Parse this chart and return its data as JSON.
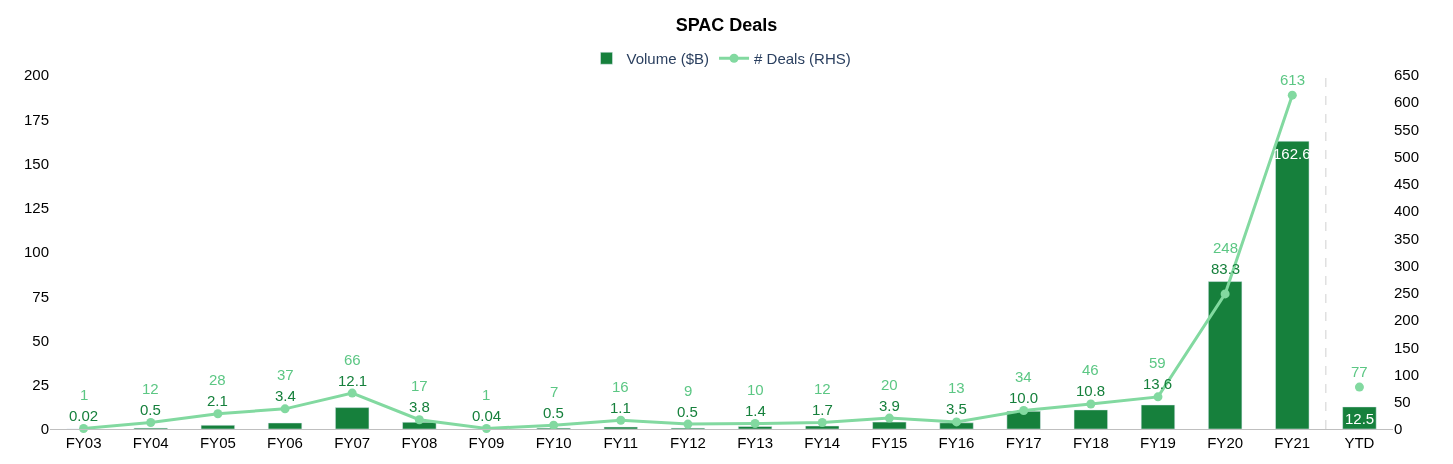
{
  "chart_data": {
    "type": "bar",
    "title": "SPAC Deals",
    "categories": [
      "FY03",
      "FY04",
      "FY05",
      "FY06",
      "FY07",
      "FY08",
      "FY09",
      "FY10",
      "FY11",
      "FY12",
      "FY13",
      "FY14",
      "FY15",
      "FY16",
      "FY17",
      "FY18",
      "FY19",
      "FY20",
      "FY21",
      "YTD"
    ],
    "series": [
      {
        "name": "Volume ($B)",
        "color": "#16803c",
        "values": [
          0.02,
          0.5,
          2.1,
          3.4,
          12.1,
          3.8,
          0.04,
          0.5,
          1.1,
          0.5,
          1.4,
          1.7,
          3.9,
          3.5,
          10.0,
          10.8,
          13.6,
          83.3,
          162.6,
          12.5
        ],
        "value_labels": [
          "0.02",
          "0.5",
          "2.1",
          "3.4",
          "12.1",
          "3.8",
          "0.04",
          "0.5",
          "1.1",
          "0.5",
          "1.4",
          "1.7",
          "3.9",
          "3.5",
          "10.0",
          "10.8",
          "13.6",
          "83.3",
          "162.6",
          "12.5"
        ]
      },
      {
        "name": "# Deals (RHS)",
        "type": "line",
        "axis": "y2",
        "color": "#82d9a0",
        "marker": "circle",
        "data_labels": true,
        "values": [
          1,
          12,
          28,
          37,
          66,
          17,
          1,
          7,
          16,
          9,
          10,
          12,
          20,
          13,
          34,
          46,
          59,
          248,
          613,
          null
        ]
      },
      {
        "type": "scatter",
        "axis": "y2",
        "color": "#82d9a0",
        "marker": "circle",
        "data_labels": true,
        "values": [
          null,
          null,
          null,
          null,
          null,
          null,
          null,
          null,
          null,
          null,
          null,
          null,
          null,
          null,
          null,
          null,
          null,
          null,
          null,
          77
        ]
      }
    ],
    "ylim": [
      0,
      200
    ],
    "yticks": [
      0,
      25,
      50,
      75,
      100,
      125,
      150,
      175,
      200
    ],
    "y2lim": [
      0,
      650
    ],
    "y2ticks": [
      0,
      50,
      100,
      150,
      200,
      250,
      300,
      350,
      400,
      450,
      500,
      550,
      600,
      650
    ],
    "legend": "top"
  }
}
